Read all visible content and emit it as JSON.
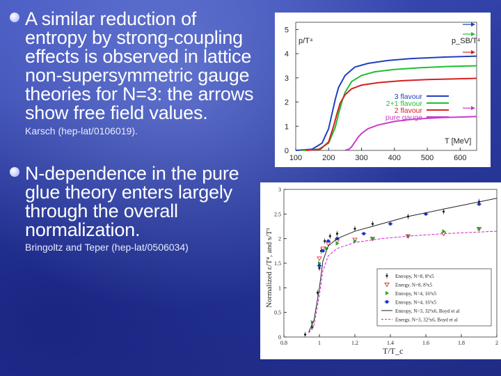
{
  "bullets": [
    {
      "lines": [
        "A similar reduction of",
        "entropy by strong-coupling",
        "effects is observed in lattice",
        "non-supersymmetric gauge",
        "theories for N=3: the arrows",
        "show free field values."
      ]
    },
    {
      "lines": [
        "N-dependence in the pure",
        "glue theory enters largely",
        "through the overall",
        "normalization."
      ]
    }
  ],
  "citations": [
    "Karsch (hep-lat/0106019).",
    "Bringoltz and Teper (hep-lat/0506034)"
  ],
  "chart_data": [
    {
      "type": "line",
      "y_label": "p/T⁴",
      "y_label_right": "p_SB/T⁴",
      "x_label": "T [MeV]",
      "xlim": [
        100,
        650
      ],
      "ylim": [
        0,
        5.3
      ],
      "x_ticks": [
        "100",
        "200",
        "300",
        "400",
        "500",
        "600"
      ],
      "y_ticks": [
        "0",
        "1",
        "2",
        "3",
        "4",
        "5"
      ],
      "legend_position": "middle-right",
      "series": [
        {
          "name": "3 flavour",
          "color": "#1f3fbf",
          "x": [
            100,
            150,
            180,
            200,
            210,
            220,
            230,
            250,
            280,
            320,
            380,
            450,
            550,
            650
          ],
          "y": [
            0,
            0.05,
            0.3,
            0.9,
            1.5,
            2.1,
            2.6,
            3.1,
            3.45,
            3.6,
            3.72,
            3.8,
            3.86,
            3.9
          ],
          "sb": 5.21
        },
        {
          "name": "2+1 flavour",
          "color": "#1fbf2f",
          "x": [
            120,
            170,
            200,
            220,
            230,
            240,
            250,
            270,
            300,
            340,
            400,
            480,
            560,
            650
          ],
          "y": [
            0,
            0.05,
            0.3,
            0.95,
            1.5,
            2.0,
            2.4,
            2.85,
            3.1,
            3.25,
            3.35,
            3.42,
            3.47,
            3.5
          ],
          "sb": 4.81
        },
        {
          "name": "2 flavour",
          "color": "#d42020",
          "x": [
            130,
            175,
            200,
            215,
            225,
            235,
            250,
            270,
            300,
            350,
            420,
            500,
            650
          ],
          "y": [
            0,
            0.05,
            0.35,
            1.0,
            1.5,
            1.95,
            2.3,
            2.55,
            2.7,
            2.8,
            2.88,
            2.93,
            2.98
          ],
          "sb": 4.06
        },
        {
          "name": "pure gauge",
          "color": "#c83cc8",
          "x": [
            250,
            262,
            270,
            280,
            290,
            300,
            320,
            350,
            400,
            450,
            500,
            550,
            600,
            650
          ],
          "y": [
            0,
            0.05,
            0.15,
            0.35,
            0.55,
            0.7,
            0.9,
            1.05,
            1.2,
            1.28,
            1.33,
            1.36,
            1.38,
            1.4
          ],
          "sb": 1.75
        }
      ]
    },
    {
      "type": "scatter",
      "y_label": "Normalized ε/T⁴, and s/T³",
      "x_label": "T/T_c",
      "xlim": [
        0.8,
        2.0
      ],
      "ylim": [
        0,
        3
      ],
      "x_ticks": [
        "0.8",
        "1",
        "1.2",
        "1.4",
        "1.6",
        "1.8",
        "2"
      ],
      "y_ticks": [
        "0",
        "0.5",
        "1",
        "1.5",
        "2",
        "2.5",
        "3"
      ],
      "legend_position": "lower-right",
      "series": [
        {
          "name": "Entropy, N=8, 8³x5",
          "color": "#222222",
          "marker": "dot",
          "x": [
            0.92,
            0.96,
            0.99,
            1.0,
            1.01,
            1.03,
            1.06,
            1.1,
            1.2,
            1.3,
            1.5,
            1.7,
            1.9
          ],
          "y": [
            0.05,
            0.2,
            0.9,
            1.4,
            1.75,
            1.95,
            2.05,
            2.1,
            2.2,
            2.3,
            2.45,
            2.55,
            2.75
          ]
        },
        {
          "name": "Energy, N=8, 8³x5",
          "color": "#cc3333",
          "marker": "tri-down",
          "x": [
            1.0,
            1.02,
            1.05,
            1.1,
            1.2,
            1.3,
            1.5,
            1.7,
            1.9
          ],
          "y": [
            1.6,
            1.8,
            1.9,
            1.95,
            1.98,
            2.0,
            2.05,
            2.1,
            2.2
          ]
        },
        {
          "name": "Entropy, N=4, 16³x5",
          "color": "#22aa22",
          "marker": "tri-right",
          "x": [
            0.96,
            1.0,
            1.04,
            1.1,
            1.2,
            1.3,
            1.5,
            1.7,
            1.9
          ],
          "y": [
            0.3,
            1.5,
            1.8,
            1.9,
            1.95,
            2.0,
            2.05,
            2.15,
            2.2
          ]
        },
        {
          "name": "Entropy, N=4, 16³x5",
          "color": "#2233cc",
          "marker": "star",
          "x": [
            1.0,
            1.02,
            1.05,
            1.1,
            1.25,
            1.4,
            1.6,
            1.9
          ],
          "y": [
            1.45,
            1.75,
            1.95,
            2.0,
            2.1,
            2.3,
            2.5,
            2.7
          ]
        },
        {
          "name": "Entropy, N=3, 32³x6, Boyd et al",
          "color": "#222222",
          "marker": "none",
          "x": [
            0.94,
            0.97,
            1.0,
            1.02,
            1.05,
            1.1,
            1.2,
            1.35,
            1.5,
            1.7,
            2.0
          ],
          "y": [
            0.1,
            0.35,
            1.0,
            1.55,
            1.85,
            2.0,
            2.15,
            2.3,
            2.45,
            2.6,
            2.82
          ]
        },
        {
          "name": "Energy, N=3, 32³x6, Boyd et al",
          "color": "#cc22cc",
          "marker": "none",
          "dashed": true,
          "x": [
            0.94,
            0.97,
            1.0,
            1.02,
            1.05,
            1.1,
            1.2,
            1.35,
            1.5,
            1.7,
            2.0
          ],
          "y": [
            0.08,
            0.25,
            0.85,
            1.35,
            1.65,
            1.8,
            1.92,
            2.0,
            2.05,
            2.1,
            2.15
          ]
        }
      ]
    }
  ]
}
